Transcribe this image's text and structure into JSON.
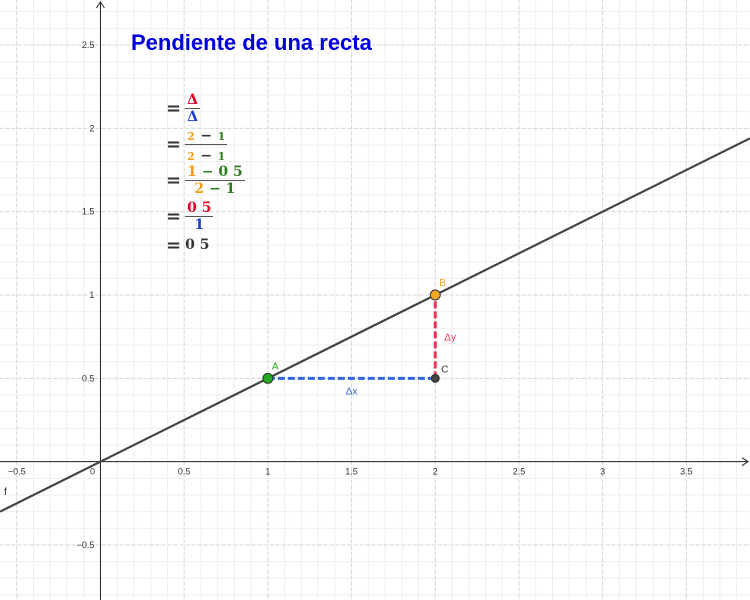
{
  "title": "Pendiente de una recta",
  "math": {
    "row1": {
      "num": "Δ",
      "den": "Δ"
    },
    "row2": {
      "num_a": "2",
      "num_op": "−",
      "num_b": "1",
      "den_a": "2",
      "den_op": "−",
      "den_b": "1"
    },
    "row3": {
      "num_a": "1",
      "num_op": "− 0 5",
      "den_a": "2",
      "den_op": "− 1"
    },
    "row4": {
      "num": "0 5",
      "den": "1"
    },
    "row5": {
      "value": "0 5"
    },
    "equals": "="
  },
  "axes": {
    "x_ticks": [
      "−0.5",
      "0",
      "0.5",
      "1",
      "1.5",
      "2",
      "2.5",
      "3",
      "3.5"
    ],
    "y_ticks": [
      "2.5",
      "2",
      "1.5",
      "1",
      "0.5",
      "−0.5"
    ],
    "x_range": [
      -0.6,
      3.88
    ],
    "y_range": [
      -0.83,
      2.77
    ],
    "grid": true
  },
  "line": {
    "label": "f",
    "slope": 0.5,
    "intercept": 0,
    "color": "#444444"
  },
  "points": [
    {
      "label": "A",
      "x": 1,
      "y": 0.5,
      "color": "#22aa22"
    },
    {
      "label": "B",
      "x": 2,
      "y": 1,
      "color": "#f5a623"
    },
    {
      "label": "C",
      "x": 2,
      "y": 0.5,
      "color": "#444444"
    }
  ],
  "segments": {
    "dx_label": "Δx",
    "dx_color": "#3366dd",
    "dy_label": "Δy",
    "dy_color": "#ee3355"
  }
}
